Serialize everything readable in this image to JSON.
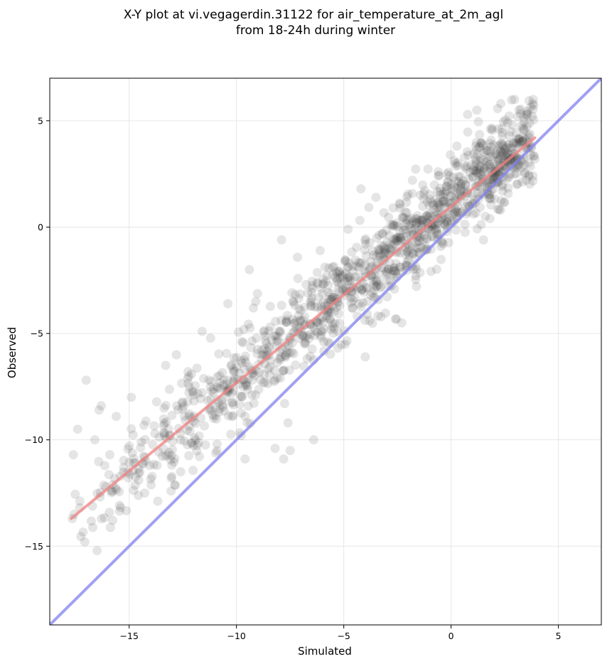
{
  "chart_data": {
    "type": "scatter",
    "title_line1": "X-Y plot at vi.vegagerdin.31122 for air_temperature_at_2m_agl",
    "title_line2": "from 18-24h during winter",
    "xlabel": "Simulated",
    "ylabel": "Observed",
    "xlim": [
      -18.7,
      7.0
    ],
    "ylim": [
      -18.7,
      7.0
    ],
    "xticks": [
      -15,
      -10,
      -5,
      0,
      5
    ],
    "yticks": [
      -15,
      -10,
      -5,
      0,
      5
    ],
    "xtick_labels": [
      "−15",
      "−10",
      "−5",
      "0",
      "5"
    ],
    "ytick_labels": [
      "−15",
      "−10",
      "−5",
      "0",
      "5"
    ],
    "grid": true,
    "regression_line": {
      "color": "#f08080",
      "x": [
        -17.7,
        3.9
      ],
      "y": [
        -13.7,
        4.2
      ]
    },
    "identity_line": {
      "color": "#8080f0",
      "x": [
        -18.7,
        7.0
      ],
      "y": [
        -18.7,
        7.0
      ]
    },
    "point_color": "#333333",
    "point_alpha": 0.13,
    "generated_points": {
      "count": 1300,
      "seed": 7,
      "x_range": [
        -17.7,
        3.9
      ],
      "slope": 0.83,
      "intercept": 1.05,
      "noise_sd": 1.05
    },
    "outlier_points": [
      {
        "x": -17.6,
        "y": -10.7
      },
      {
        "x": -17.4,
        "y": -9.5
      },
      {
        "x": -17.0,
        "y": -7.2
      },
      {
        "x": -16.6,
        "y": -10.0
      },
      {
        "x": -16.4,
        "y": -8.6
      },
      {
        "x": -16.3,
        "y": -8.4
      },
      {
        "x": -15.9,
        "y": -10.7
      },
      {
        "x": -15.6,
        "y": -8.9
      },
      {
        "x": -14.9,
        "y": -8.0
      },
      {
        "x": -13.8,
        "y": -9.7
      },
      {
        "x": -13.7,
        "y": -11.2
      },
      {
        "x": -13.3,
        "y": -6.5
      },
      {
        "x": -12.6,
        "y": -11.5
      },
      {
        "x": -10.9,
        "y": -10.2
      },
      {
        "x": -9.6,
        "y": -10.9
      },
      {
        "x": -9.4,
        "y": -2.0
      },
      {
        "x": -8.2,
        "y": -10.4
      },
      {
        "x": -7.8,
        "y": -10.9
      },
      {
        "x": -7.5,
        "y": -10.5
      },
      {
        "x": -6.4,
        "y": -10.0
      },
      {
        "x": -7.9,
        "y": -0.6
      },
      {
        "x": -6.1,
        "y": -1.1
      },
      {
        "x": -4.0,
        "y": -6.1
      },
      {
        "x": -4.8,
        "y": -0.1
      },
      {
        "x": -4.2,
        "y": 1.8
      },
      {
        "x": -2.3,
        "y": -4.5
      },
      {
        "x": -1.8,
        "y": 2.2
      },
      {
        "x": -0.6,
        "y": 2.6
      },
      {
        "x": 1.2,
        "y": 5.5
      },
      {
        "x": 2.3,
        "y": 0.8
      },
      {
        "x": 3.8,
        "y": 5.8
      },
      {
        "x": 3.9,
        "y": 3.2
      },
      {
        "x": 3.5,
        "y": 2.2
      },
      {
        "x": -11.6,
        "y": -4.9
      },
      {
        "x": -10.4,
        "y": -3.6
      },
      {
        "x": -9.1,
        "y": -3.5
      },
      {
        "x": -12.8,
        "y": -6.0
      },
      {
        "x": -7.6,
        "y": -9.2
      },
      {
        "x": -2.7,
        "y": 0.9
      },
      {
        "x": -3.5,
        "y": 1.4
      },
      {
        "x": 0.2,
        "y": 3.0
      },
      {
        "x": 3.1,
        "y": 5.2
      }
    ]
  }
}
